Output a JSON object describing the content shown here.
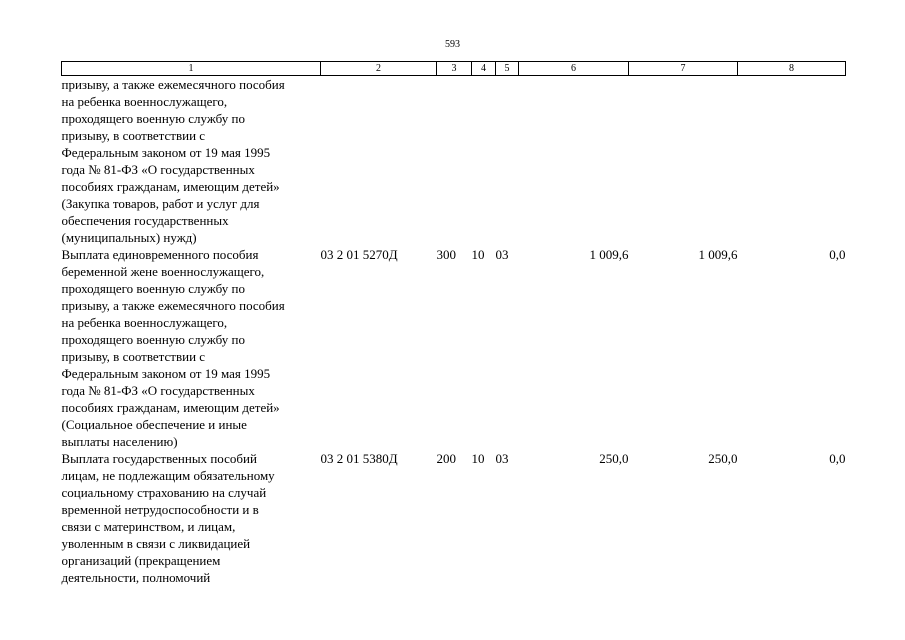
{
  "page": {
    "number": "593"
  },
  "table": {
    "headers": [
      "1",
      "2",
      "3",
      "4",
      "5",
      "6",
      "7",
      "8"
    ],
    "rows": [
      {
        "lines": [
          "призыву, а также ежемесячного пособия",
          "на ребенка военнослужащего,",
          "проходящего военную службу по",
          "призыву, в соответствии с",
          "Федеральным законом от 19 мая 1995",
          "года № 81-ФЗ «О государственных",
          "пособиях гражданам, имеющим детей»",
          "(Закупка товаров, работ и услуг для",
          "обеспечения государственных",
          "(муниципальных) нужд)"
        ],
        "code": "",
        "c3": "",
        "c4": "",
        "c5": "",
        "v6": "",
        "v7": "",
        "v8": ""
      },
      {
        "lines": [
          "Выплата единовременного пособия",
          "беременной жене военнослужащего,",
          "проходящего военную службу по",
          "призыву, а также ежемесячного пособия",
          "на ребенка военнослужащего,",
          "проходящего военную службу по",
          "призыву, в соответствии с",
          "Федеральным законом от 19 мая 1995",
          "года № 81-ФЗ «О государственных",
          "пособиях гражданам, имеющим детей»",
          "(Социальное обеспечение и иные",
          "выплаты населению)"
        ],
        "code": "03 2 01 5270Д",
        "c3": "300",
        "c4": "10",
        "c5": "03",
        "v6": "1 009,6",
        "v7": "1 009,6",
        "v8": "0,0"
      },
      {
        "lines": [
          "Выплата государственных пособий",
          "лицам, не подлежащим обязательному",
          "социальному страхованию на случай",
          "временной нетрудоспособности и в",
          "связи с материнством, и лицам,",
          "уволенным в связи с ликвидацией",
          "организаций (прекращением",
          "деятельности, полномочий"
        ],
        "code": "03 2 01 5380Д",
        "c3": "200",
        "c4": "10",
        "c5": "03",
        "v6": "250,0",
        "v7": "250,0",
        "v8": "0,0"
      }
    ]
  }
}
